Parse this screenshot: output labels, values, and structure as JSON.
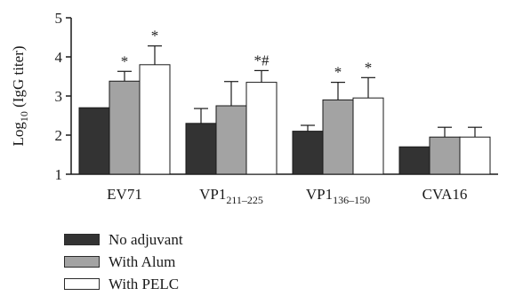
{
  "chart_data": {
    "type": "bar",
    "ylabel": "Log10 (IgG titer)",
    "ylabel_parts": {
      "pre": "Log",
      "sub": "10",
      "post": " (IgG titer)"
    },
    "ylim": [
      1,
      5
    ],
    "yticks": [
      1,
      2,
      3,
      4,
      5
    ],
    "categories": [
      {
        "base": "EV71",
        "sub": ""
      },
      {
        "base": "VP1",
        "sub": "211–225"
      },
      {
        "base": "VP1",
        "sub": "136–150"
      },
      {
        "base": "CVA16",
        "sub": ""
      }
    ],
    "series": [
      {
        "name": "No adjuvant",
        "color": "#333333",
        "values": [
          2.7,
          2.3,
          2.1,
          1.7
        ],
        "errors": [
          0.0,
          0.38,
          0.15,
          0.0
        ],
        "annotations": [
          "",
          "",
          "",
          ""
        ]
      },
      {
        "name": "With Alum",
        "color": "#a3a3a3",
        "values": [
          3.38,
          2.75,
          2.9,
          1.95
        ],
        "errors": [
          0.25,
          0.62,
          0.45,
          0.25
        ],
        "annotations": [
          "*",
          "",
          "*",
          ""
        ]
      },
      {
        "name": "With PELC",
        "color": "#ffffff",
        "values": [
          3.8,
          3.35,
          2.95,
          1.95
        ],
        "errors": [
          0.48,
          0.3,
          0.52,
          0.25
        ],
        "annotations": [
          "*",
          "*#",
          "*",
          ""
        ]
      }
    ],
    "grid": false,
    "legend_position": "bottom-left"
  }
}
